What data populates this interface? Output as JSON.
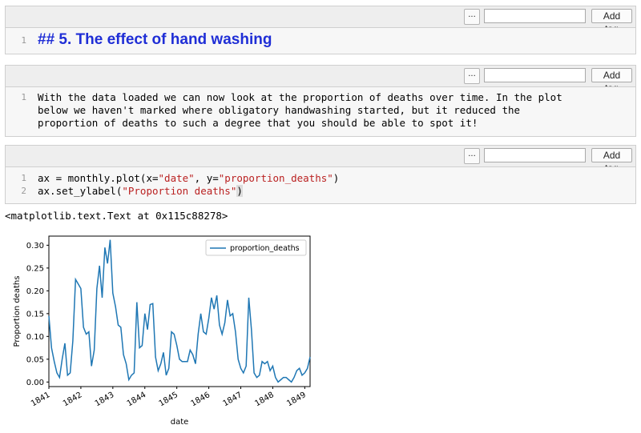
{
  "toolbar": {
    "more_label": "...",
    "add_tag_label": "Add tag",
    "tag_input_value": ""
  },
  "cells": [
    {
      "line_numbers": [
        "1"
      ],
      "heading": "## 5. The effect of hand washing"
    },
    {
      "line_numbers": [
        "1"
      ],
      "text_lines": [
        "With the data loaded we can now look at the proportion of deaths over time. In the plot",
        "below we haven't marked where obligatory handwashing started, but it reduced the",
        "proportion of deaths to such a degree that you should be able to spot it!"
      ]
    },
    {
      "line_numbers": [
        "1",
        "2"
      ],
      "code": {
        "l1_a": "ax = monthly.plot(x=",
        "l1_s1": "\"date\"",
        "l1_b": ", y=",
        "l1_s2": "\"proportion_deaths\"",
        "l1_c": ")",
        "l2_a": "ax.set_ylabel(",
        "l2_s1": "\"Proportion deaths\"",
        "l2_c": ")"
      }
    }
  ],
  "output": {
    "text": "<matplotlib.text.Text at 0x115c88278>"
  },
  "chart_data": {
    "type": "line",
    "xlabel": "date",
    "ylabel": "Proportion deaths",
    "legend": [
      "proportion_deaths"
    ],
    "legend_position": "top-right",
    "series_color": "#1f77b4",
    "ylim": [
      -0.01,
      0.32
    ],
    "xlim": [
      "1841-01",
      "1849-03"
    ],
    "yticks": [
      "0.00",
      "0.05",
      "0.10",
      "0.15",
      "0.20",
      "0.25",
      "0.30"
    ],
    "xticks": [
      "1841",
      "1842",
      "1843",
      "1844",
      "1845",
      "1846",
      "1847",
      "1848",
      "1849"
    ],
    "series": [
      {
        "name": "proportion_deaths",
        "x": [
          "1841-01",
          "1841-02",
          "1841-03",
          "1841-04",
          "1841-05",
          "1841-06",
          "1841-07",
          "1841-08",
          "1841-09",
          "1841-10",
          "1841-11",
          "1841-12",
          "1842-01",
          "1842-02",
          "1842-03",
          "1842-04",
          "1842-05",
          "1842-06",
          "1842-07",
          "1842-08",
          "1842-09",
          "1842-10",
          "1842-11",
          "1842-12",
          "1843-01",
          "1843-02",
          "1843-03",
          "1843-04",
          "1843-05",
          "1843-06",
          "1843-07",
          "1843-08",
          "1843-09",
          "1843-10",
          "1843-11",
          "1843-12",
          "1844-01",
          "1844-02",
          "1844-03",
          "1844-04",
          "1844-05",
          "1844-06",
          "1844-07",
          "1844-08",
          "1844-09",
          "1844-10",
          "1844-11",
          "1844-12",
          "1845-01",
          "1845-02",
          "1845-03",
          "1845-04",
          "1845-05",
          "1845-06",
          "1845-07",
          "1845-08",
          "1845-09",
          "1845-10",
          "1845-11",
          "1845-12",
          "1846-01",
          "1846-02",
          "1846-03",
          "1846-04",
          "1846-05",
          "1846-06",
          "1846-07",
          "1846-08",
          "1846-09",
          "1846-10",
          "1846-11",
          "1846-12",
          "1847-01",
          "1847-02",
          "1847-03",
          "1847-04",
          "1847-05",
          "1847-06",
          "1847-07",
          "1847-08",
          "1847-09",
          "1847-10",
          "1847-11",
          "1847-12",
          "1848-01",
          "1848-02",
          "1848-03",
          "1848-04",
          "1848-05",
          "1848-06",
          "1848-07",
          "1848-08",
          "1848-09",
          "1848-10",
          "1848-11",
          "1848-12",
          "1849-01",
          "1849-02",
          "1849-03"
        ],
        "values": [
          0.145,
          0.075,
          0.045,
          0.02,
          0.01,
          0.05,
          0.085,
          0.015,
          0.02,
          0.09,
          0.225,
          0.215,
          0.205,
          0.12,
          0.105,
          0.11,
          0.035,
          0.07,
          0.205,
          0.255,
          0.185,
          0.295,
          0.26,
          0.312,
          0.195,
          0.165,
          0.125,
          0.12,
          0.06,
          0.04,
          0.005,
          0.015,
          0.02,
          0.175,
          0.075,
          0.08,
          0.15,
          0.115,
          0.17,
          0.172,
          0.055,
          0.025,
          0.04,
          0.065,
          0.015,
          0.03,
          0.11,
          0.105,
          0.08,
          0.05,
          0.045,
          0.045,
          0.045,
          0.07,
          0.06,
          0.04,
          0.105,
          0.15,
          0.11,
          0.105,
          0.14,
          0.185,
          0.16,
          0.19,
          0.125,
          0.105,
          0.13,
          0.18,
          0.145,
          0.15,
          0.11,
          0.05,
          0.03,
          0.02,
          0.035,
          0.185,
          0.115,
          0.02,
          0.01,
          0.015,
          0.045,
          0.04,
          0.045,
          0.025,
          0.035,
          0.01,
          0.0,
          0.005,
          0.01,
          0.01,
          0.005,
          0.0,
          0.01,
          0.025,
          0.03,
          0.015,
          0.02,
          0.03,
          0.055
        ]
      }
    ]
  }
}
